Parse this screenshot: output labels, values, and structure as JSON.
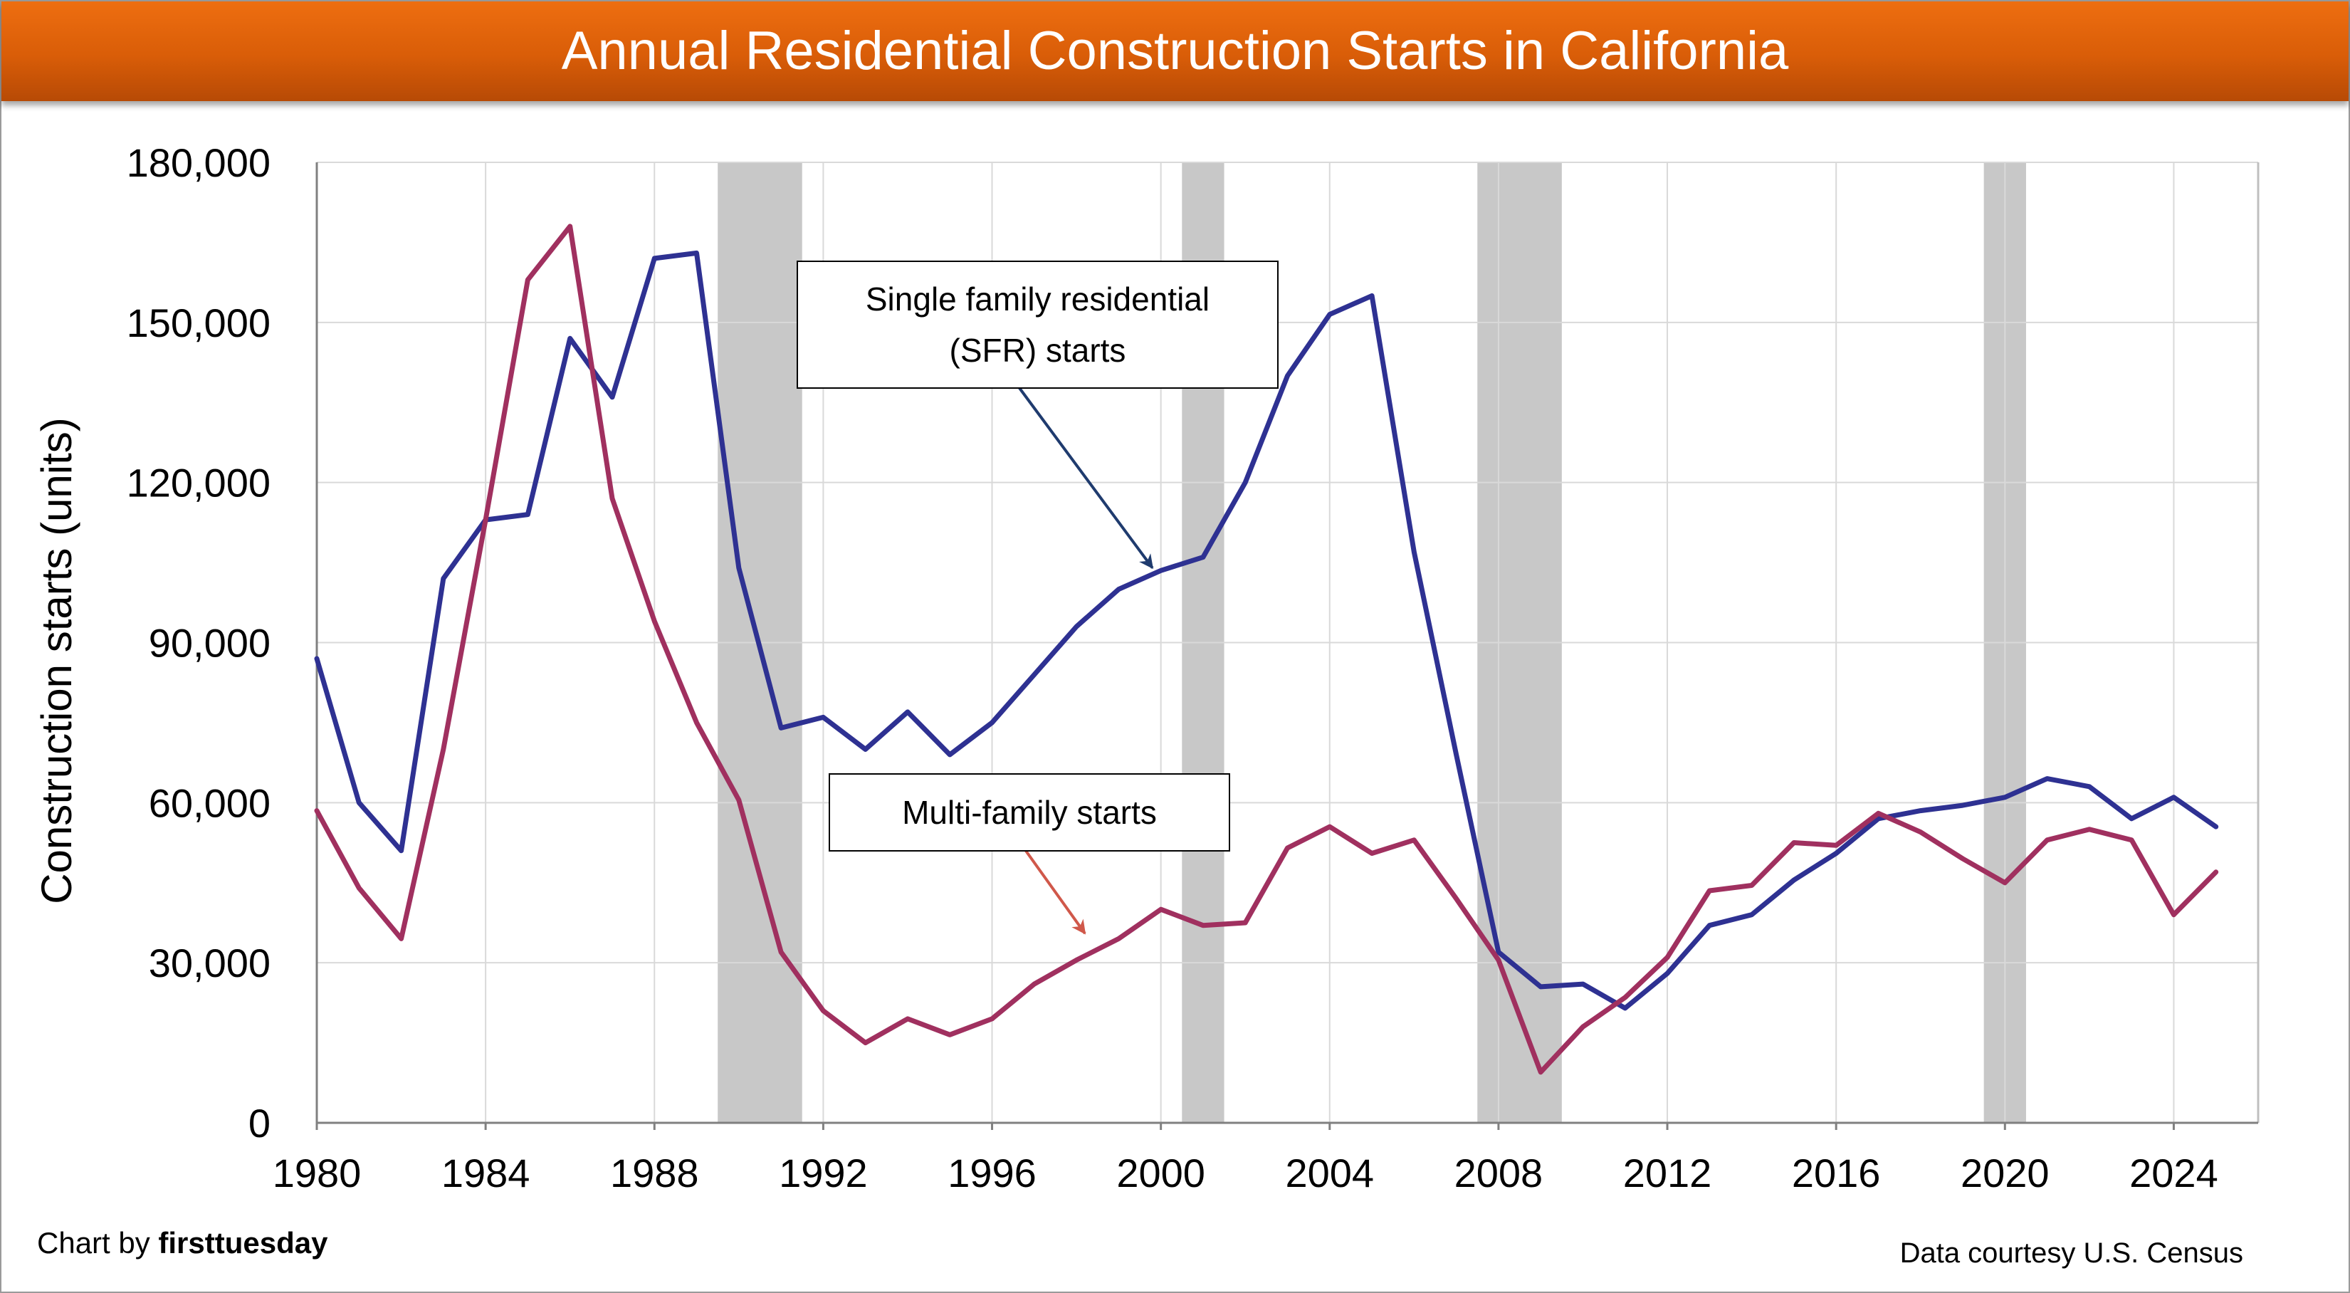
{
  "header": {
    "title": "Annual Residential Construction Starts in California"
  },
  "footer": {
    "credit_prefix": "Chart by ",
    "credit_brand": "firsttuesday",
    "source": "Data courtesy U.S. Census"
  },
  "chart_data": {
    "type": "line",
    "title": "Annual Residential Construction Starts in California",
    "xlabel": "",
    "ylabel": "Construction starts (units)",
    "xlim": [
      1980,
      2026
    ],
    "ylim": [
      0,
      180000
    ],
    "x_ticks": [
      "1980",
      "1984",
      "1988",
      "1992",
      "1996",
      "2000",
      "2004",
      "2008",
      "2012",
      "2016",
      "2020",
      "2024"
    ],
    "y_ticks": [
      "0",
      "30,000",
      "60,000",
      "90,000",
      "120,000",
      "150,000",
      "180,000"
    ],
    "grid": true,
    "recessions": [
      [
        1989.5,
        1991.5
      ],
      [
        2000.5,
        2001.5
      ],
      [
        2007.5,
        2009.5
      ],
      [
        2019.5,
        2020.5
      ]
    ],
    "recession_color": "#c8c8c8",
    "x": [
      1980,
      1981,
      1982,
      1983,
      1984,
      1985,
      1986,
      1987,
      1988,
      1989,
      1990,
      1991,
      1992,
      1993,
      1994,
      1995,
      1996,
      1997,
      1998,
      1999,
      2000,
      2001,
      2002,
      2003,
      2004,
      2005,
      2006,
      2007,
      2008,
      2009,
      2010,
      2011,
      2012,
      2013,
      2014,
      2015,
      2016,
      2017,
      2018,
      2019,
      2020,
      2021,
      2022,
      2023,
      2024,
      2025
    ],
    "series": [
      {
        "name": "Single family residential (SFR) starts",
        "color": "#2e3192",
        "values": [
          87000,
          60000,
          51000,
          102000,
          113000,
          114000,
          147000,
          136000,
          162000,
          163000,
          104000,
          74000,
          76000,
          70000,
          77000,
          69000,
          75000,
          84000,
          93000,
          100000,
          103500,
          106000,
          120000,
          140000,
          151500,
          155000,
          107000,
          69000,
          32000,
          25500,
          26000,
          21500,
          28000,
          37000,
          39000,
          45500,
          50500,
          57000,
          58500,
          59500,
          61000,
          64500,
          63000,
          57000,
          61000,
          55500
        ]
      },
      {
        "name": "Multi-family starts",
        "color": "#a0305f",
        "values": [
          58500,
          44000,
          34500,
          70000,
          113000,
          158000,
          168000,
          117000,
          94000,
          75000,
          60500,
          32000,
          21000,
          15000,
          19500,
          16500,
          19500,
          26000,
          30500,
          34500,
          40000,
          37000,
          37500,
          51500,
          55500,
          50500,
          53000,
          42000,
          30500,
          9500,
          18000,
          23500,
          31000,
          43500,
          44500,
          52500,
          52000,
          58000,
          54500,
          49500,
          45000,
          53000,
          55000,
          53000,
          39000,
          47000
        ]
      }
    ],
    "annotations": [
      {
        "lines": [
          "Single family residential",
          "(SFR) starts"
        ],
        "series": 0,
        "arrow_year": 1999.8,
        "arrow_value": 104000,
        "color": "#1f3b6e"
      },
      {
        "lines": [
          "Multi-family starts"
        ],
        "series": 1,
        "arrow_year": 1998.2,
        "arrow_value": 35500,
        "color": "#d0584a"
      }
    ]
  }
}
